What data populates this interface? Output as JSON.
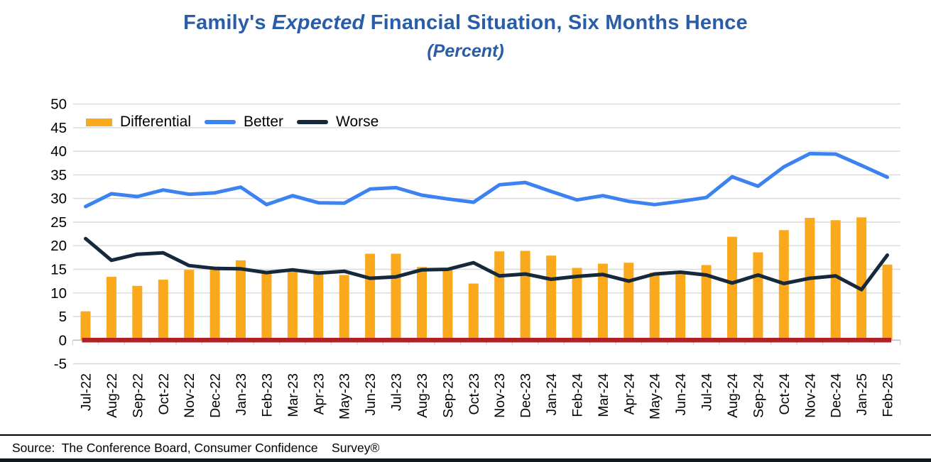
{
  "header": {
    "title_prefix": "Family's",
    "title_italic": "Expected",
    "title_suffix": "Financial Situation, Six Months Hence",
    "subtitle": "(Percent)",
    "title_color": "#2A5DA8"
  },
  "footer": {
    "source": "Source:  The Conference Board, Consumer Confidence    Survey®"
  },
  "colors": {
    "differential_bar": "#FAA81C",
    "better_line": "#3C82F0",
    "worse_line": "#16283C",
    "zero_highlight": "#B21F24",
    "gridline": "#D9D9D9",
    "axis": "#BFBFBF",
    "bottom_band": "#101820"
  },
  "chart_data": {
    "type": "bar",
    "title": "Family's Expected Financial Situation, Six Months Hence",
    "subtitle": "(Percent)",
    "xlabel": "",
    "ylabel": "",
    "ylim": [
      -5,
      50
    ],
    "yticks": [
      -5,
      0,
      5,
      10,
      15,
      20,
      25,
      30,
      35,
      40,
      45,
      50
    ],
    "grid": true,
    "legend_position": "top-left",
    "zero_line_color": "#B21F24",
    "grid_color": "#D9D9D9",
    "axis_color": "#BFBFBF",
    "categories": [
      "Jul-22",
      "Aug-22",
      "Sep-22",
      "Oct-22",
      "Nov-22",
      "Dec-22",
      "Jan-23",
      "Feb-23",
      "Mar-23",
      "Apr-23",
      "May-23",
      "Jun-23",
      "Jul-23",
      "Aug-23",
      "Sep-23",
      "Oct-23",
      "Nov-23",
      "Dec-23",
      "Jan-24",
      "Feb-24",
      "Mar-24",
      "Apr-24",
      "May-24",
      "Jun-24",
      "Jul-24",
      "Aug-24",
      "Sep-24",
      "Oct-24",
      "Nov-24",
      "Dec-24",
      "Jan-25",
      "Feb-25"
    ],
    "series": [
      {
        "name": "Differential",
        "type": "bar",
        "color": "#FAA81C",
        "values": [
          6.1,
          13.4,
          11.5,
          12.8,
          14.9,
          15.6,
          16.9,
          14.2,
          14.9,
          14.2,
          13.8,
          18.3,
          18.3,
          15.5,
          15.0,
          12.0,
          18.8,
          18.9,
          17.9,
          15.3,
          16.2,
          16.4,
          14.3,
          14.2,
          15.9,
          21.9,
          18.6,
          23.3,
          25.9,
          25.4,
          26.0,
          16.0
        ]
      },
      {
        "name": "Better",
        "type": "line",
        "color": "#3C82F0",
        "values": [
          28.3,
          31.0,
          30.4,
          31.8,
          30.9,
          31.2,
          32.4,
          28.7,
          30.6,
          29.1,
          29.0,
          32.0,
          32.3,
          30.7,
          29.9,
          29.2,
          32.9,
          33.4,
          31.5,
          29.7,
          30.6,
          29.4,
          28.7,
          29.4,
          30.2,
          34.6,
          32.6,
          36.7,
          39.5,
          39.4,
          37.0,
          34.5
        ]
      },
      {
        "name": "Worse",
        "type": "line",
        "color": "#16283C",
        "values": [
          21.5,
          16.9,
          18.2,
          18.5,
          15.8,
          15.2,
          15.1,
          14.3,
          14.9,
          14.2,
          14.6,
          13.1,
          13.4,
          14.9,
          15.0,
          16.4,
          13.6,
          14.0,
          12.9,
          13.5,
          13.9,
          12.5,
          14.0,
          14.4,
          13.8,
          12.1,
          13.8,
          12.0,
          13.1,
          13.6,
          10.7,
          18.0
        ]
      }
    ]
  }
}
